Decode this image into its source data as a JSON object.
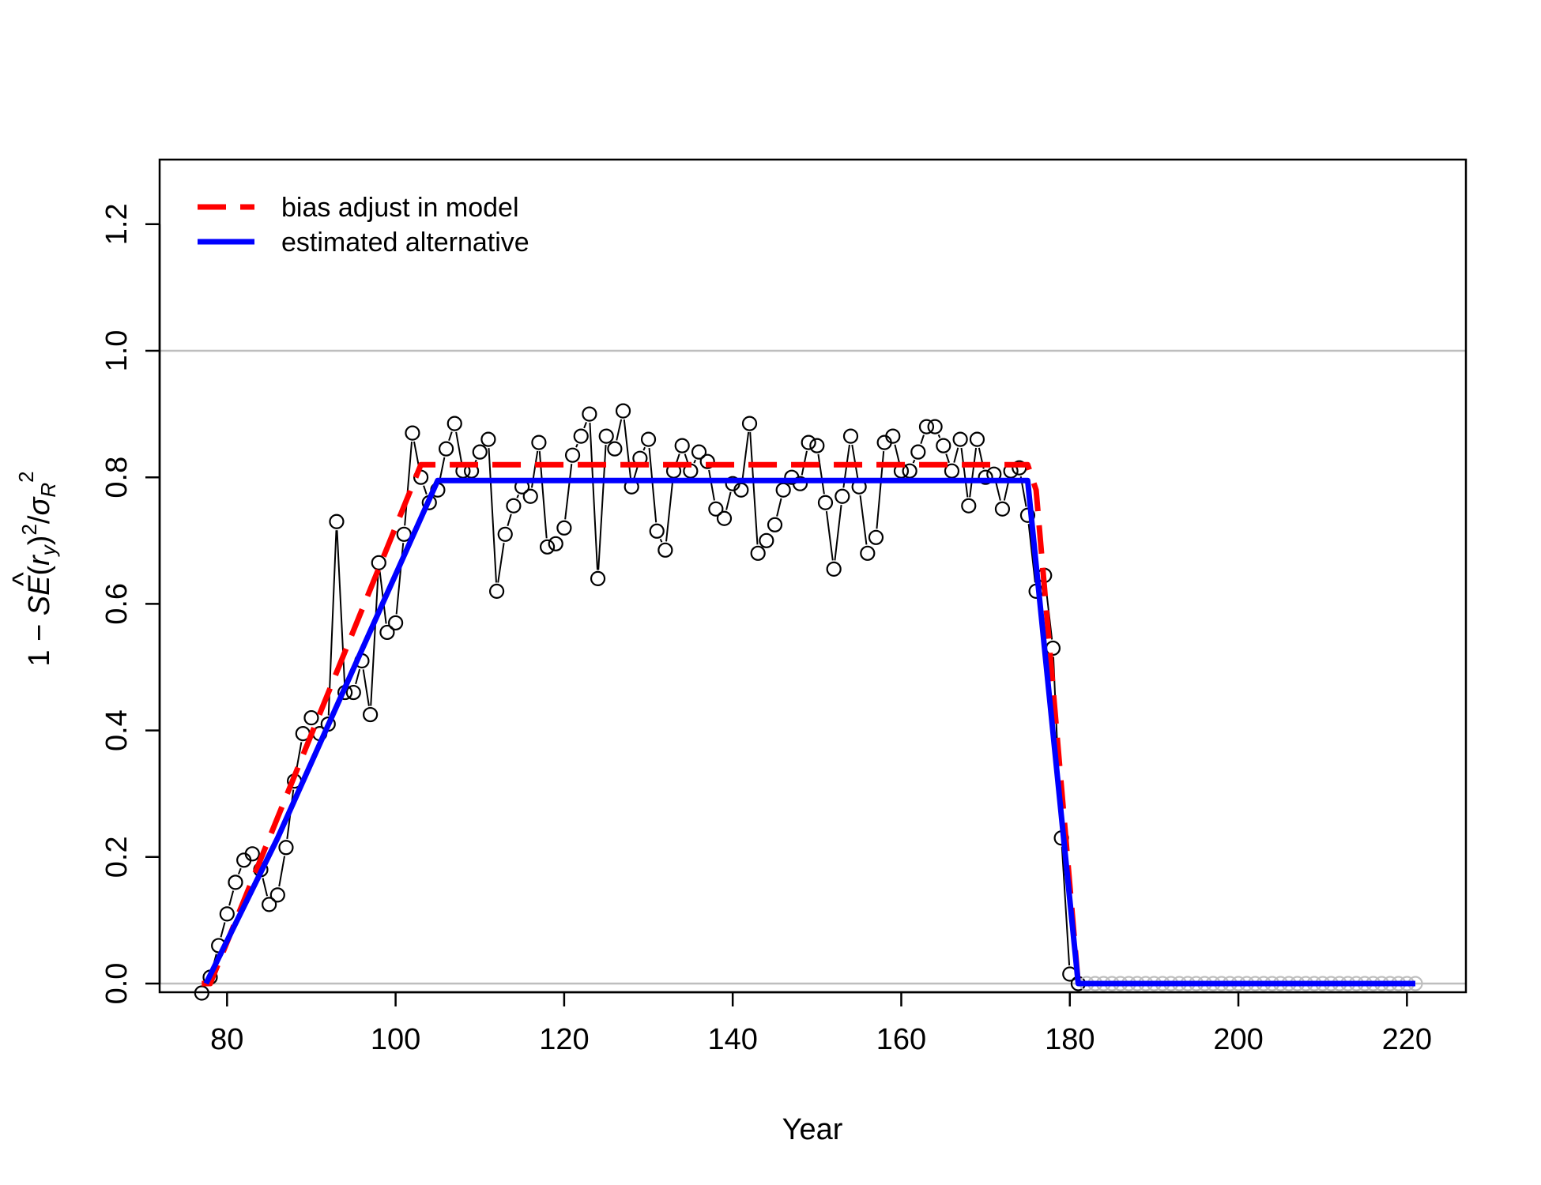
{
  "chart_data": {
    "type": "scatter",
    "title": "",
    "xlabel": "Year",
    "ylabel": {
      "prefix": "1 − ",
      "se": "SE",
      "r_hat": "r",
      "hat": "^",
      "r_sub": "y",
      "exp2": "2",
      "slash": "/",
      "sigma": "σ",
      "sigma_sub": "R",
      "sigma_exp": "2"
    },
    "xlim": [
      72,
      227
    ],
    "ylim": [
      0,
      1.3
    ],
    "x_ticks": [
      80,
      100,
      120,
      140,
      160,
      180,
      200,
      220
    ],
    "x_tick_labels": [
      "80",
      "100",
      "120",
      "140",
      "160",
      "180",
      "200",
      "220"
    ],
    "y_ticks": [
      0,
      0.2,
      0.4,
      0.6,
      0.8,
      1.0,
      1.2
    ],
    "y_tick_labels": [
      "0.0",
      "0.2",
      "0.4",
      "0.6",
      "0.8",
      "1.0",
      "1.2"
    ],
    "hlines": [
      {
        "y": 1.0,
        "color": "#bebebe"
      },
      {
        "y": 0.0,
        "color": "#bebebe"
      }
    ],
    "legend": {
      "position": "top-left",
      "entries": [
        {
          "label": "bias adjust in model",
          "color": "#ff0000",
          "style": "dashed"
        },
        {
          "label": "estimated alternative",
          "color": "#0000ff",
          "style": "solid"
        }
      ]
    },
    "points": {
      "name": "",
      "color": "#000000",
      "x": [
        77,
        78,
        79,
        80,
        81,
        82,
        83,
        84,
        85,
        86,
        87,
        88,
        89,
        90,
        91,
        92,
        93,
        94,
        95,
        96,
        97,
        98,
        99,
        100,
        101,
        102,
        103,
        104,
        105,
        106,
        107,
        108,
        109,
        110,
        111,
        112,
        113,
        114,
        115,
        116,
        117,
        118,
        119,
        120,
        121,
        122,
        123,
        124,
        125,
        126,
        127,
        128,
        129,
        130,
        131,
        132,
        133,
        134,
        135,
        136,
        137,
        138,
        139,
        140,
        141,
        142,
        143,
        144,
        145,
        146,
        147,
        148,
        149,
        150,
        151,
        152,
        153,
        154,
        155,
        156,
        157,
        158,
        159,
        160,
        161,
        162,
        163,
        164,
        165,
        166,
        167,
        168,
        169,
        170,
        171,
        172,
        173,
        174,
        175,
        176,
        177,
        178,
        179,
        180,
        181
      ],
      "y": [
        -0.015,
        0.01,
        0.06,
        0.11,
        0.16,
        0.195,
        0.205,
        0.18,
        0.125,
        0.14,
        0.215,
        0.32,
        0.395,
        0.42,
        0.395,
        0.41,
        0.73,
        0.46,
        0.46,
        0.51,
        0.425,
        0.665,
        0.555,
        0.57,
        0.71,
        0.87,
        0.8,
        0.76,
        0.78,
        0.845,
        0.885,
        0.81,
        0.81,
        0.84,
        0.86,
        0.62,
        0.71,
        0.755,
        0.785,
        0.77,
        0.855,
        0.69,
        0.695,
        0.72,
        0.835,
        0.865,
        0.9,
        0.64,
        0.865,
        0.845,
        0.905,
        0.785,
        0.83,
        0.86,
        0.715,
        0.685,
        0.81,
        0.85,
        0.81,
        0.84,
        0.825,
        0.75,
        0.735,
        0.79,
        0.78,
        0.885,
        0.68,
        0.7,
        0.725,
        0.78,
        0.8,
        0.79,
        0.855,
        0.85,
        0.76,
        0.655,
        0.77,
        0.865,
        0.785,
        0.68,
        0.705,
        0.855,
        0.865,
        0.81,
        0.81,
        0.84,
        0.88,
        0.88,
        0.85,
        0.81,
        0.86,
        0.755,
        0.86,
        0.8,
        0.805,
        0.75,
        0.81,
        0.815,
        0.74,
        0.62,
        0.645,
        0.53,
        0.23,
        0.015,
        0.0
      ],
      "zero_x": [
        182,
        183,
        184,
        185,
        186,
        187,
        188,
        189,
        190,
        191,
        192,
        193,
        194,
        195,
        196,
        197,
        198,
        199,
        200,
        201,
        202,
        203,
        204,
        205,
        206,
        207,
        208,
        209,
        210,
        211,
        212,
        213,
        214,
        215,
        216,
        217,
        218,
        219,
        220,
        221
      ],
      "zero_y": 0.0
    },
    "series": [
      {
        "name": "bias adjust in model",
        "color": "#ff0000",
        "style": "dashed",
        "x": [
          77,
          78,
          103,
          175,
          176,
          181,
          221
        ],
        "y": [
          0.0,
          0.0,
          0.82,
          0.82,
          0.78,
          0.0,
          0.0
        ]
      },
      {
        "name": "estimated alternative",
        "color": "#0000ff",
        "style": "solid",
        "x": [
          77.5,
          86,
          105,
          175,
          181,
          221
        ],
        "y": [
          0.0,
          0.23,
          0.795,
          0.795,
          0.0,
          0.0
        ]
      }
    ]
  }
}
